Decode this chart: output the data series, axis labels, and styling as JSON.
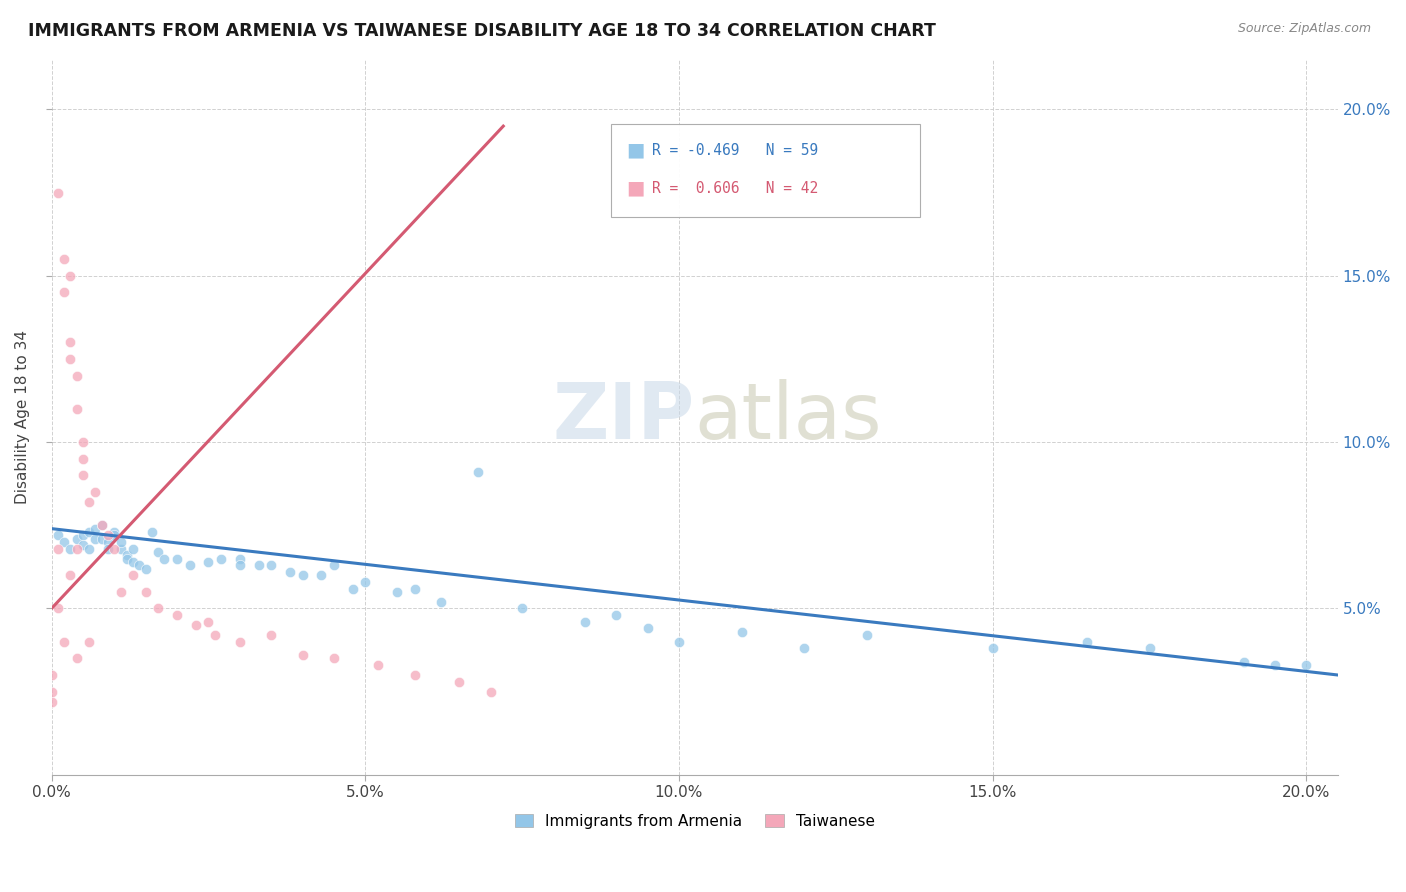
{
  "title": "IMMIGRANTS FROM ARMENIA VS TAIWANESE DISABILITY AGE 18 TO 34 CORRELATION CHART",
  "source_text": "Source: ZipAtlas.com",
  "ylabel": "Disability Age 18 to 34",
  "xlim": [
    0.0,
    0.205
  ],
  "ylim": [
    0.0,
    0.215
  ],
  "xticks": [
    0.0,
    0.05,
    0.1,
    0.15,
    0.2
  ],
  "xtick_labels": [
    "0.0%",
    "5.0%",
    "10.0%",
    "15.0%",
    "20.0%"
  ],
  "yticks": [
    0.05,
    0.1,
    0.15,
    0.2
  ],
  "right_ytick_labels": [
    "5.0%",
    "10.0%",
    "15.0%",
    "20.0%"
  ],
  "watermark_zip": "ZIP",
  "watermark_atlas": "atlas",
  "color_blue": "#93c6e8",
  "color_pink": "#f4a7b9",
  "trendline_blue": "#3a7abf",
  "trendline_pink": "#d45a72",
  "blue_scatter_x": [
    0.001,
    0.002,
    0.003,
    0.004,
    0.005,
    0.005,
    0.006,
    0.006,
    0.007,
    0.007,
    0.008,
    0.008,
    0.009,
    0.009,
    0.01,
    0.01,
    0.011,
    0.011,
    0.012,
    0.012,
    0.013,
    0.013,
    0.014,
    0.015,
    0.016,
    0.017,
    0.018,
    0.02,
    0.022,
    0.025,
    0.027,
    0.03,
    0.03,
    0.033,
    0.035,
    0.038,
    0.04,
    0.043,
    0.045,
    0.048,
    0.05,
    0.055,
    0.058,
    0.062,
    0.068,
    0.075,
    0.085,
    0.09,
    0.095,
    0.1,
    0.11,
    0.12,
    0.13,
    0.15,
    0.165,
    0.175,
    0.19,
    0.195,
    0.2
  ],
  "blue_scatter_y": [
    0.072,
    0.07,
    0.068,
    0.071,
    0.069,
    0.072,
    0.068,
    0.073,
    0.071,
    0.074,
    0.075,
    0.071,
    0.07,
    0.068,
    0.073,
    0.072,
    0.068,
    0.07,
    0.066,
    0.065,
    0.064,
    0.068,
    0.063,
    0.062,
    0.073,
    0.067,
    0.065,
    0.065,
    0.063,
    0.064,
    0.065,
    0.065,
    0.063,
    0.063,
    0.063,
    0.061,
    0.06,
    0.06,
    0.063,
    0.056,
    0.058,
    0.055,
    0.056,
    0.052,
    0.091,
    0.05,
    0.046,
    0.048,
    0.044,
    0.04,
    0.043,
    0.038,
    0.042,
    0.038,
    0.04,
    0.038,
    0.034,
    0.033,
    0.033
  ],
  "pink_scatter_x": [
    0.0,
    0.0,
    0.0,
    0.001,
    0.001,
    0.001,
    0.002,
    0.002,
    0.002,
    0.003,
    0.003,
    0.003,
    0.004,
    0.004,
    0.004,
    0.005,
    0.005,
    0.005,
    0.006,
    0.006,
    0.007,
    0.008,
    0.009,
    0.01,
    0.011,
    0.013,
    0.015,
    0.017,
    0.02,
    0.023,
    0.026,
    0.03,
    0.035,
    0.04,
    0.045,
    0.052,
    0.058,
    0.065,
    0.07,
    0.025,
    0.003,
    0.004
  ],
  "pink_scatter_y": [
    0.03,
    0.025,
    0.022,
    0.175,
    0.068,
    0.05,
    0.155,
    0.145,
    0.04,
    0.15,
    0.13,
    0.125,
    0.12,
    0.11,
    0.035,
    0.1,
    0.095,
    0.09,
    0.082,
    0.04,
    0.085,
    0.075,
    0.072,
    0.068,
    0.055,
    0.06,
    0.055,
    0.05,
    0.048,
    0.045,
    0.042,
    0.04,
    0.042,
    0.036,
    0.035,
    0.033,
    0.03,
    0.028,
    0.025,
    0.046,
    0.06,
    0.068
  ],
  "blue_trend_x": [
    0.0,
    0.205
  ],
  "blue_trend_y": [
    0.074,
    0.03
  ],
  "pink_trend_x": [
    0.0,
    0.072
  ],
  "pink_trend_y": [
    0.05,
    0.195
  ]
}
